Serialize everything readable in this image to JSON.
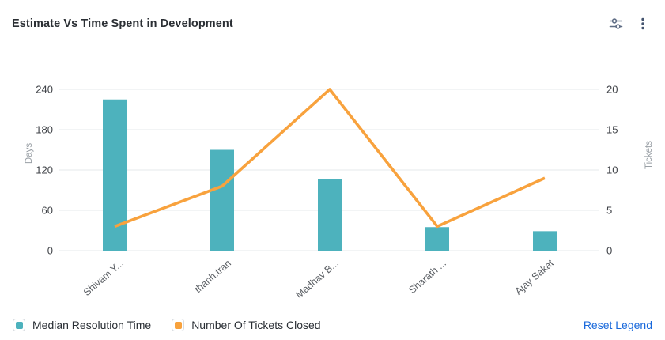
{
  "header": {
    "title": "Estimate Vs Time Spent in Development",
    "settings_icon": "settings-sliders-icon",
    "menu_icon": "kebab-menu-icon"
  },
  "chart_data": {
    "type": "bar",
    "subtype": "combo-bar-line-dual-axis",
    "title": "Estimate Vs Time Spent in Development",
    "categories": [
      "Shivam Y...",
      "thanh.tran",
      "Madhav B...",
      "Sharath ...",
      "Ajay Sakat"
    ],
    "series": [
      {
        "name": "Median Resolution Time",
        "type": "bar",
        "axis": "left",
        "color": "#4db2bd",
        "values": [
          225,
          150,
          107,
          35,
          29
        ]
      },
      {
        "name": "Number Of Tickets Closed",
        "type": "line",
        "axis": "right",
        "color": "#f8a23d",
        "values": [
          3,
          8,
          20,
          3,
          9
        ]
      }
    ],
    "y_left": {
      "label": "Days",
      "min": 0,
      "max": 240,
      "ticks": [
        0,
        60,
        120,
        180,
        240
      ]
    },
    "y_right": {
      "label": "Tickets",
      "min": 0,
      "max": 20,
      "ticks": [
        0,
        5,
        10,
        15,
        20
      ]
    },
    "grid": true,
    "legend_position": "bottom"
  },
  "legend": {
    "items": [
      {
        "label": "Median Resolution Time",
        "color": "#4db2bd"
      },
      {
        "label": "Number Of Tickets Closed",
        "color": "#f8a23d"
      }
    ],
    "reset_label": "Reset Legend"
  },
  "colors": {
    "bar": "#4db2bd",
    "line": "#f8a23d",
    "link": "#1868db",
    "gridline": "#ebedef",
    "tick_label": "#3f4247",
    "x_label": "#5a5e63",
    "axis_title": "#9aa0a6",
    "icon": "#5e6c84"
  }
}
